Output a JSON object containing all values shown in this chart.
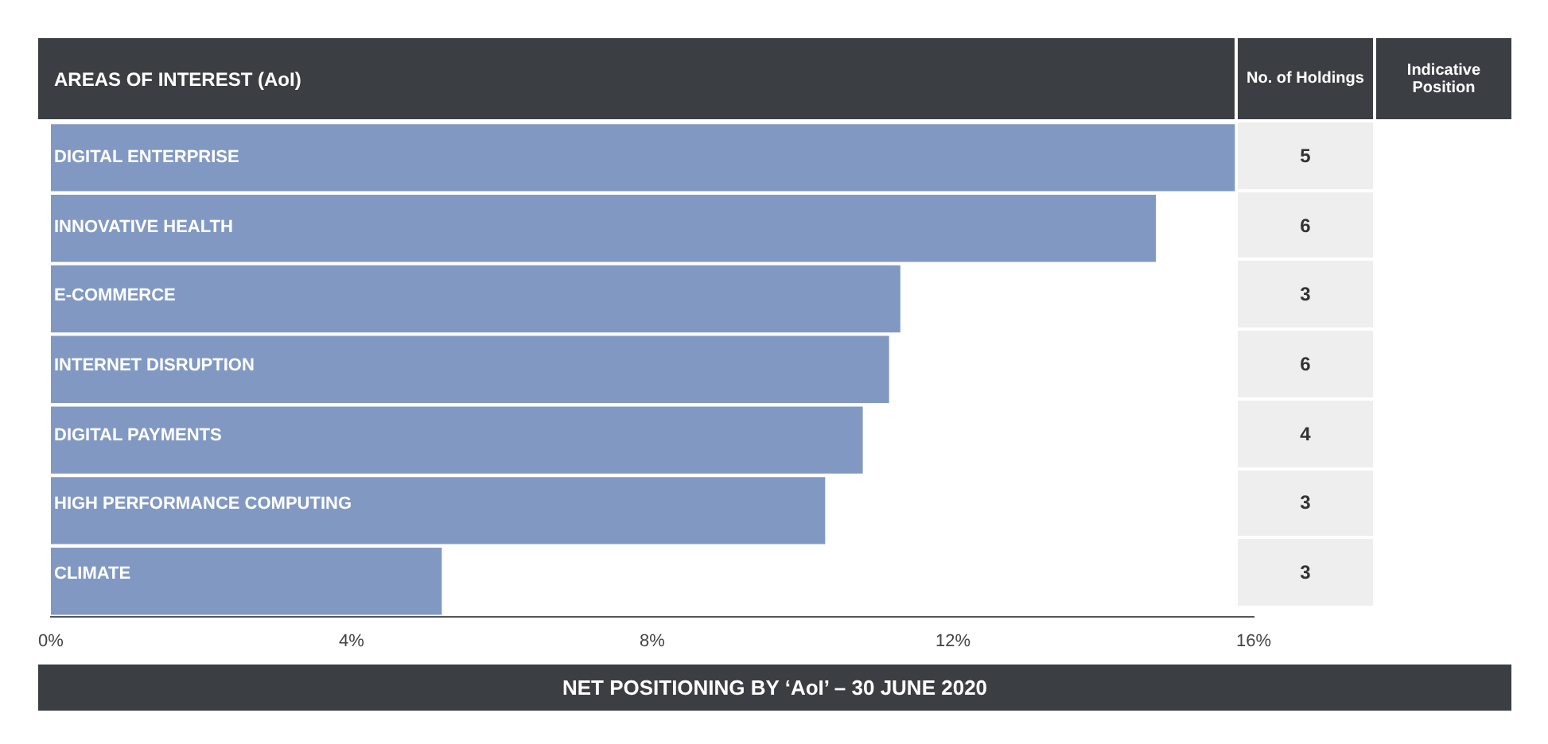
{
  "chart_data": [
    {
      "type": "bar",
      "orientation": "horizontal",
      "title": "AREAS OF INTEREST (AoI)",
      "categories": [
        "DIGITAL ENTERPRISE",
        "INNOVATIVE HEALTH",
        "E-COMMERCE",
        "INTERNET DISRUPTION",
        "DIGITAL PAYMENTS",
        "HIGH PERFORMANCE COMPUTING",
        "CLIMATE"
      ],
      "values": [
        15.75,
        14.7,
        11.3,
        11.15,
        10.8,
        10.3,
        5.2
      ],
      "color": "#8199c2",
      "xlim": [
        0,
        16
      ],
      "xticks": [
        {
          "value": 0,
          "label": "0%"
        },
        {
          "value": 4,
          "label": "4%"
        },
        {
          "value": 8,
          "label": "8%"
        },
        {
          "value": 12,
          "label": "12%"
        },
        {
          "value": 16,
          "label": "16%"
        }
      ],
      "annotations": [
        "NET POSITIONING BY ‘AoI’ – 30 JUNE 2020"
      ]
    },
    {
      "type": "other",
      "title": "No. of Holdings",
      "values": [
        5,
        6,
        3,
        6,
        4,
        3,
        3
      ],
      "value_labels": [
        "5",
        "6",
        "3",
        "6",
        "4",
        "3",
        "3"
      ],
      "annotations": [
        "Indicative Position"
      ]
    }
  ]
}
